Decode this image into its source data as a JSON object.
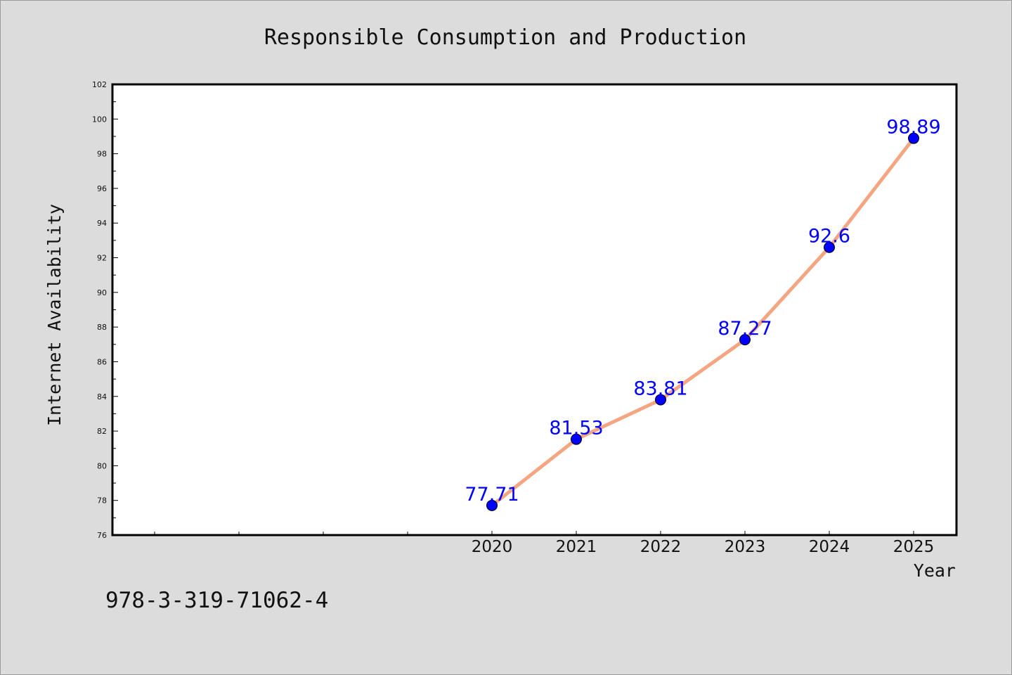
{
  "chart_data": {
    "type": "line",
    "title": "Responsible Consumption and Production",
    "xlabel": "Year",
    "ylabel": "Internet Availability",
    "categories": [
      "2020",
      "2021",
      "2022",
      "2023",
      "2024",
      "2025"
    ],
    "values": [
      77.71,
      81.53,
      83.81,
      87.27,
      92.6,
      98.89
    ],
    "data_labels": [
      "77.71",
      "81.53",
      "83.81",
      "87.27",
      "92.6",
      "98.89"
    ],
    "ylim": [
      76,
      102
    ],
    "yticks": [
      "76",
      "78",
      "80",
      "82",
      "84",
      "86",
      "88",
      "90",
      "92",
      "94",
      "96",
      "98",
      "100",
      "102"
    ],
    "grid": false,
    "legend": "none",
    "line_color": "#f4a582",
    "marker_color": "#0000ff",
    "label_color": "#0000ff"
  },
  "footer": {
    "isbn": "978-3-319-71062-4"
  }
}
